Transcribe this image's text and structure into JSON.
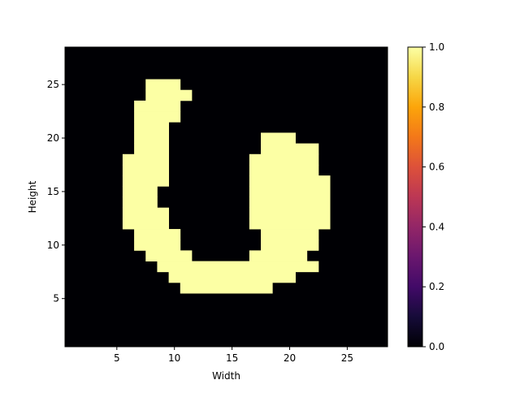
{
  "chart_data": {
    "type": "heatmap",
    "title": "",
    "xlabel": "Width",
    "ylabel": "Height",
    "xlim": [
      0.5,
      28.5
    ],
    "ylim": [
      0.5,
      28.5
    ],
    "xticks": [
      5,
      10,
      15,
      20,
      25
    ],
    "yticks": [
      5,
      10,
      15,
      20,
      25
    ],
    "colormap": "inferno",
    "colorbar": {
      "range": [
        0,
        1
      ],
      "ticks": [
        0.0,
        0.2,
        0.4,
        0.6,
        0.8,
        1.0
      ],
      "tick_labels": [
        "0.0",
        "0.2",
        "0.4",
        "0.6",
        "0.8",
        "1.0"
      ]
    },
    "grid": false,
    "low_color": "#000004",
    "high_color": "#fcffa4",
    "filled_value": 1,
    "empty_value": 0,
    "filled_runs": [
      {
        "y": 25,
        "x": [
          [
            8,
            10
          ]
        ]
      },
      {
        "y": 24,
        "x": [
          [
            8,
            11
          ]
        ]
      },
      {
        "y": 23,
        "x": [
          [
            7,
            10
          ]
        ]
      },
      {
        "y": 22,
        "x": [
          [
            7,
            10
          ]
        ]
      },
      {
        "y": 21,
        "x": [
          [
            7,
            9
          ]
        ]
      },
      {
        "y": 20,
        "x": [
          [
            7,
            9
          ],
          [
            18,
            20
          ]
        ]
      },
      {
        "y": 19,
        "x": [
          [
            7,
            9
          ],
          [
            18,
            22
          ]
        ]
      },
      {
        "y": 18,
        "x": [
          [
            6,
            9
          ],
          [
            17,
            22
          ]
        ]
      },
      {
        "y": 17,
        "x": [
          [
            6,
            9
          ],
          [
            17,
            22
          ]
        ]
      },
      {
        "y": 16,
        "x": [
          [
            6,
            9
          ],
          [
            17,
            23
          ]
        ]
      },
      {
        "y": 15,
        "x": [
          [
            6,
            8
          ],
          [
            17,
            23
          ]
        ]
      },
      {
        "y": 14,
        "x": [
          [
            6,
            8
          ],
          [
            17,
            23
          ]
        ]
      },
      {
        "y": 13,
        "x": [
          [
            6,
            9
          ],
          [
            17,
            23
          ]
        ]
      },
      {
        "y": 12,
        "x": [
          [
            6,
            9
          ],
          [
            17,
            23
          ]
        ]
      },
      {
        "y": 11,
        "x": [
          [
            7,
            10
          ],
          [
            18,
            22
          ]
        ]
      },
      {
        "y": 10,
        "x": [
          [
            7,
            10
          ],
          [
            18,
            22
          ]
        ]
      },
      {
        "y": 9,
        "x": [
          [
            8,
            11
          ],
          [
            17,
            21
          ]
        ]
      },
      {
        "y": 8,
        "x": [
          [
            9,
            22
          ]
        ]
      },
      {
        "y": 7,
        "x": [
          [
            10,
            20
          ]
        ]
      },
      {
        "y": 6,
        "x": [
          [
            11,
            18
          ]
        ]
      }
    ]
  }
}
